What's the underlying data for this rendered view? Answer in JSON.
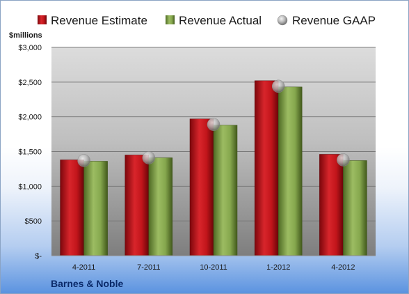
{
  "chart_data": {
    "type": "bar",
    "categories": [
      "4-2011",
      "7-2011",
      "10-2011",
      "1-2012",
      "4-2012"
    ],
    "series": [
      {
        "name": "Revenue Estimate",
        "kind": "bar",
        "color": "#c8141c",
        "values": [
          1380,
          1450,
          1970,
          2520,
          1460
        ]
      },
      {
        "name": "Revenue Actual",
        "kind": "bar",
        "color": "#8cac54",
        "values": [
          1360,
          1410,
          1880,
          2430,
          1370
        ]
      },
      {
        "name": "Revenue GAAP",
        "kind": "marker",
        "color": "#b0b0b0",
        "values": [
          1370,
          1410,
          1890,
          2440,
          1380
        ]
      }
    ],
    "ylim": [
      0,
      3000
    ],
    "yticks": [
      {
        "value": 3000,
        "label": "$3,000"
      },
      {
        "value": 2500,
        "label": "$2,500"
      },
      {
        "value": 2000,
        "label": "$2,000"
      },
      {
        "value": 1500,
        "label": "$1,500"
      },
      {
        "value": 1000,
        "label": "$1,000"
      },
      {
        "value": 500,
        "label": "$500"
      },
      {
        "value": 0,
        "label": "$-"
      }
    ],
    "unit_label": "$millions",
    "company": "Barnes & Noble",
    "legend_position": "top",
    "grid": true
  }
}
